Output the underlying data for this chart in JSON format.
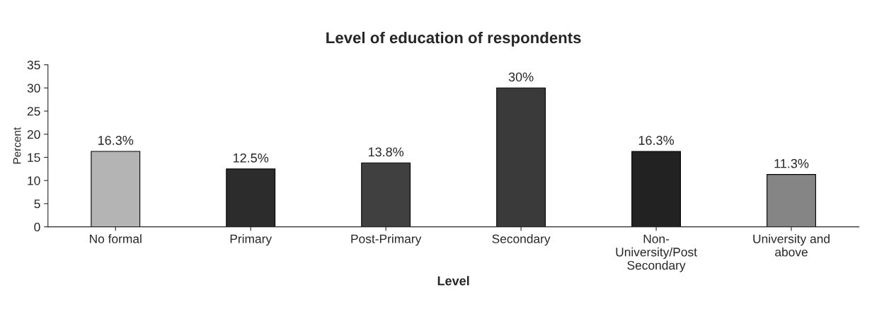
{
  "chart_data": {
    "type": "bar",
    "title": "Level of education of respondents",
    "xlabel": "Level",
    "ylabel": "Percent",
    "categories": [
      "No formal",
      "Primary",
      "Post-Primary",
      "Secondary",
      "Non-\nUniversity/Post\nSecondary",
      "University and\nabove"
    ],
    "values": [
      16.3,
      12.5,
      13.8,
      30,
      16.3,
      11.3
    ],
    "colors": [
      "#b4b4b4",
      "#2c2c2c",
      "#404040",
      "#3a3a3a",
      "#222222",
      "#858585"
    ],
    "value_labels": [
      "16.3%",
      "12.5%",
      "13.8%",
      "30%",
      "16.3%",
      "11.3%"
    ],
    "ylim": [
      0,
      35
    ],
    "yticks": [
      0,
      5,
      10,
      15,
      20,
      25,
      30,
      35
    ],
    "grid": false,
    "legend": false
  }
}
